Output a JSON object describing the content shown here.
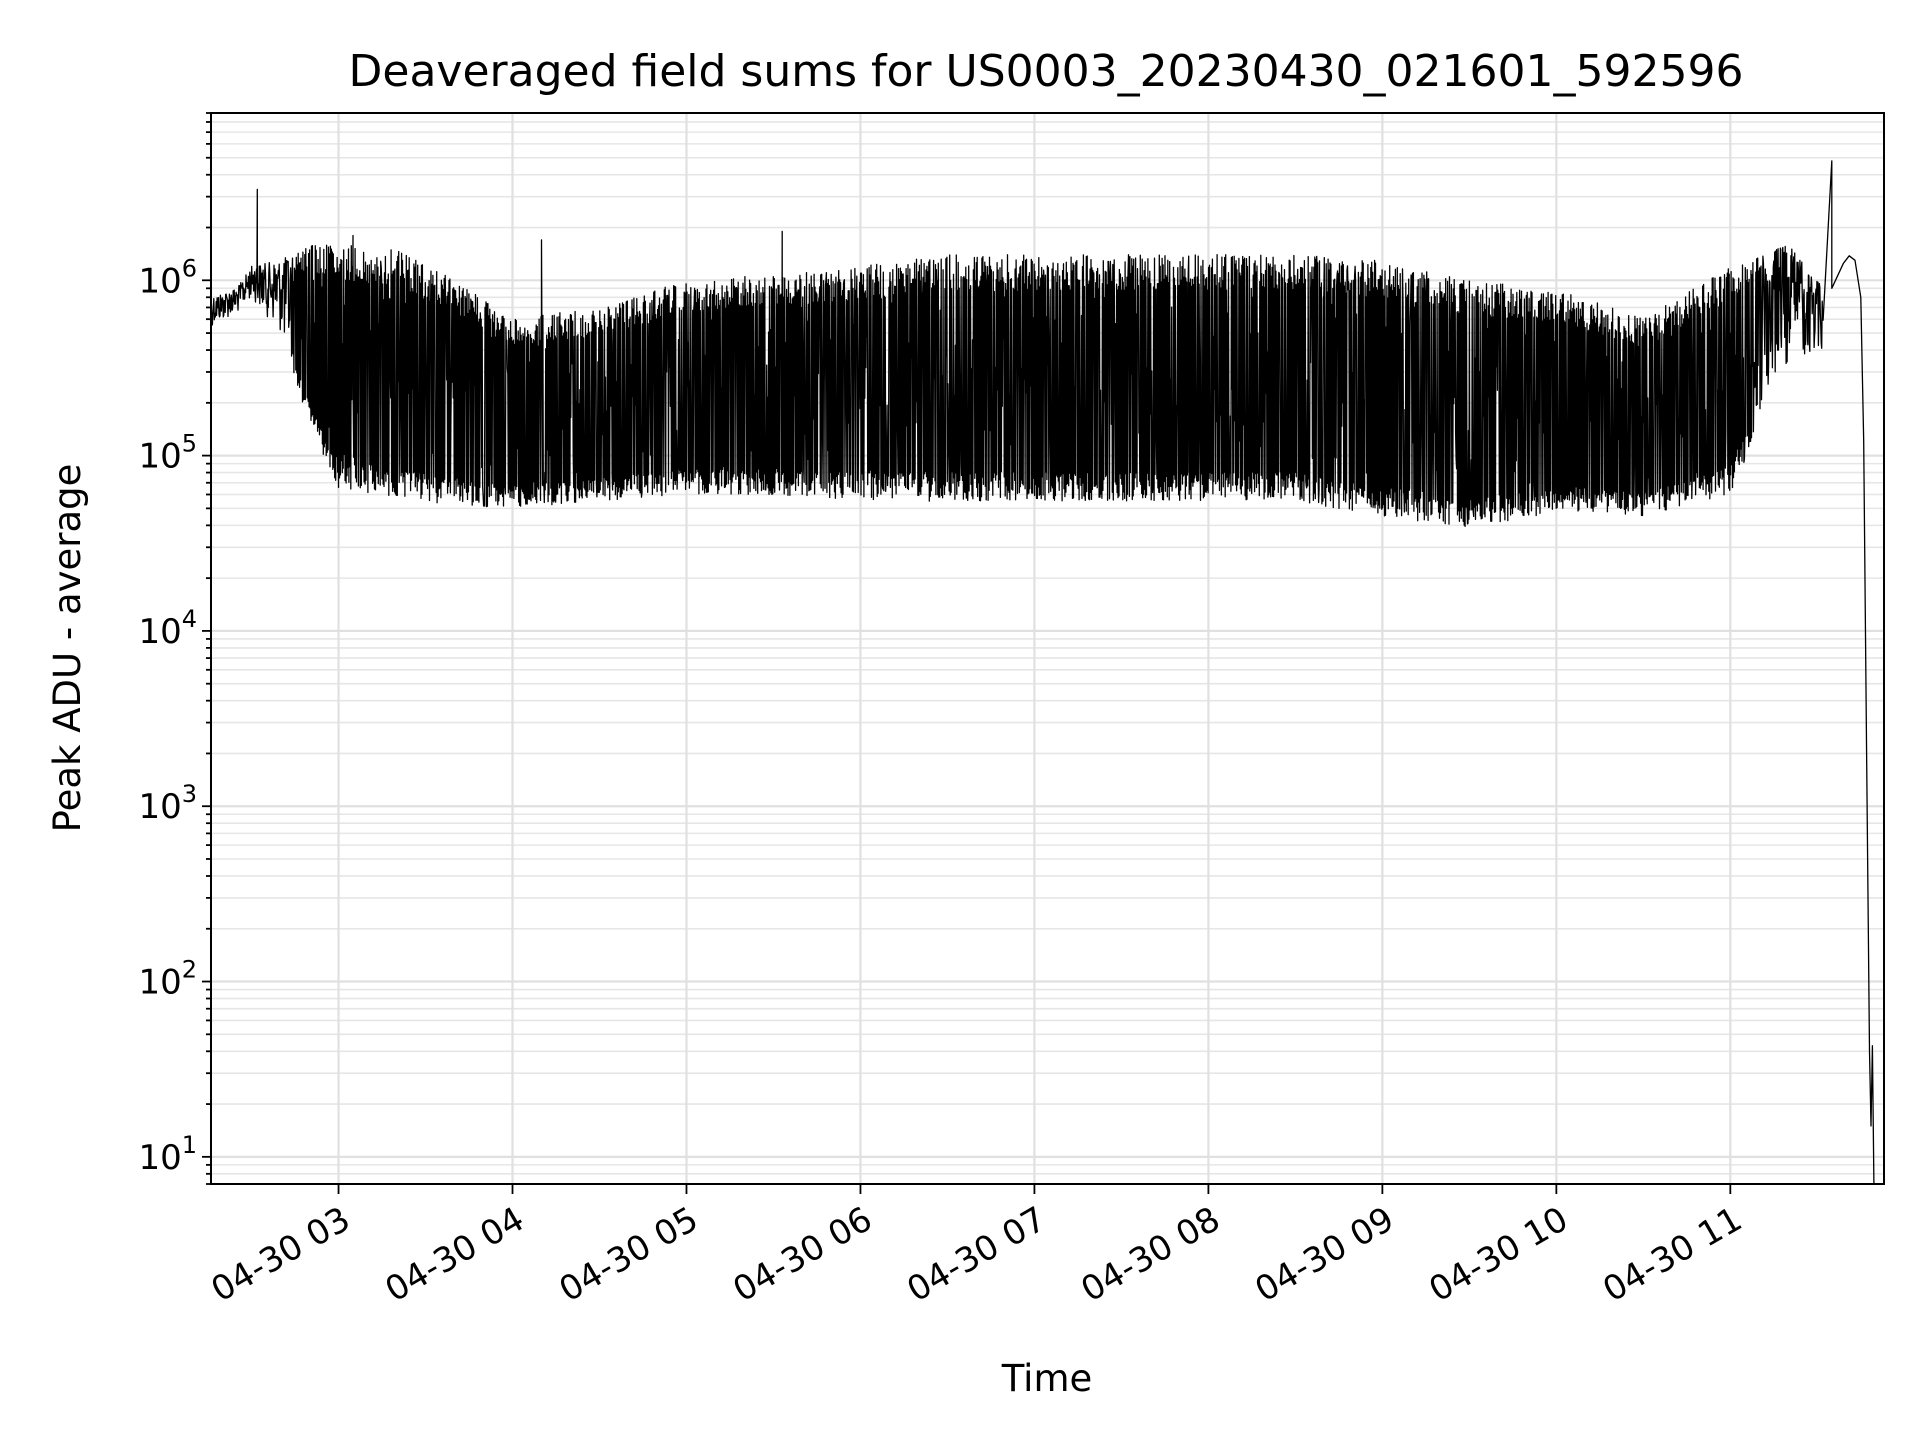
{
  "chart_data": {
    "type": "line",
    "title": "Deaveraged field sums for US0003_20230430_021601_592596",
    "xlabel": "Time",
    "ylabel": "Peak ADU - average",
    "yscale": "log",
    "ylim": [
      7,
      9000000
    ],
    "xlim": [
      "2023-04-30 02:16:01",
      "2023-04-30 11:53:00"
    ],
    "grid": true,
    "y_ticks": [
      {
        "value": 10,
        "base": "10",
        "exp": "1"
      },
      {
        "value": 100,
        "base": "10",
        "exp": "2"
      },
      {
        "value": 1000,
        "base": "10",
        "exp": "3"
      },
      {
        "value": 10000,
        "base": "10",
        "exp": "4"
      },
      {
        "value": 100000,
        "base": "10",
        "exp": "5"
      },
      {
        "value": 1000000,
        "base": "10",
        "exp": "6"
      }
    ],
    "x_ticks": [
      {
        "value": "2023-04-30 03:00",
        "label": "04-30 03"
      },
      {
        "value": "2023-04-30 04:00",
        "label": "04-30 04"
      },
      {
        "value": "2023-04-30 05:00",
        "label": "04-30 05"
      },
      {
        "value": "2023-04-30 06:00",
        "label": "04-30 06"
      },
      {
        "value": "2023-04-30 07:00",
        "label": "04-30 07"
      },
      {
        "value": "2023-04-30 08:00",
        "label": "04-30 08"
      },
      {
        "value": "2023-04-30 09:00",
        "label": "04-30 09"
      },
      {
        "value": "2023-04-30 10:00",
        "label": "04-30 10"
      },
      {
        "value": "2023-04-30 11:00",
        "label": "04-30 11"
      }
    ],
    "series": [
      {
        "color": "#000000",
        "envelope": [
          {
            "x": "2023-04-30 02:16",
            "upper": 800000,
            "lower": 550000
          },
          {
            "x": "2023-04-30 02:25",
            "upper": 900000,
            "lower": 650000
          },
          {
            "x": "2023-04-30 02:30",
            "upper": 1200000,
            "lower": 800000
          },
          {
            "x": "2023-04-30 02:40",
            "upper": 1300000,
            "lower": 500000
          },
          {
            "x": "2023-04-30 02:50",
            "upper": 1600000,
            "lower": 150000
          },
          {
            "x": "2023-04-30 03:00",
            "upper": 1600000,
            "lower": 65000
          },
          {
            "x": "2023-04-30 03:20",
            "upper": 1500000,
            "lower": 58000
          },
          {
            "x": "2023-04-30 03:40",
            "upper": 1000000,
            "lower": 52000
          },
          {
            "x": "2023-04-30 04:00",
            "upper": 600000,
            "lower": 50000
          },
          {
            "x": "2023-04-30 04:30",
            "upper": 700000,
            "lower": 55000
          },
          {
            "x": "2023-04-30 05:00",
            "upper": 1000000,
            "lower": 60000
          },
          {
            "x": "2023-04-30 05:30",
            "upper": 1100000,
            "lower": 60000
          },
          {
            "x": "2023-04-30 06:00",
            "upper": 1200000,
            "lower": 55000
          },
          {
            "x": "2023-04-30 06:30",
            "upper": 1400000,
            "lower": 55000
          },
          {
            "x": "2023-04-30 07:00",
            "upper": 1400000,
            "lower": 55000
          },
          {
            "x": "2023-04-30 07:30",
            "upper": 1400000,
            "lower": 55000
          },
          {
            "x": "2023-04-30 08:00",
            "upper": 1400000,
            "lower": 55000
          },
          {
            "x": "2023-04-30 08:30",
            "upper": 1400000,
            "lower": 55000
          },
          {
            "x": "2023-04-30 09:00",
            "upper": 1300000,
            "lower": 45000
          },
          {
            "x": "2023-04-30 09:30",
            "upper": 1000000,
            "lower": 38000
          },
          {
            "x": "2023-04-30 10:00",
            "upper": 900000,
            "lower": 48000
          },
          {
            "x": "2023-04-30 10:30",
            "upper": 600000,
            "lower": 45000
          },
          {
            "x": "2023-04-30 11:00",
            "upper": 1200000,
            "lower": 60000
          },
          {
            "x": "2023-04-30 11:20",
            "upper": 1600000,
            "lower": 350000
          },
          {
            "x": "2023-04-30 11:32",
            "upper": 900000,
            "lower": 400000
          }
        ],
        "spikes": [
          {
            "x": "2023-04-30 02:32",
            "y": 3300000
          },
          {
            "x": "2023-04-30 03:05",
            "y": 1800000
          },
          {
            "x": "2023-04-30 04:10",
            "y": 1700000
          },
          {
            "x": "2023-04-30 05:33",
            "y": 1900000
          },
          {
            "x": "2023-04-30 11:35",
            "y": 4800000
          }
        ],
        "tail": [
          {
            "x": "2023-04-30 11:35",
            "y": 900000
          },
          {
            "x": "2023-04-30 11:39",
            "y": 1250000
          },
          {
            "x": "2023-04-30 11:41",
            "y": 1380000
          },
          {
            "x": "2023-04-30 11:43",
            "y": 1300000
          },
          {
            "x": "2023-04-30 11:45",
            "y": 800000
          },
          {
            "x": "2023-04-30 11:46",
            "y": 120000
          },
          {
            "x": "2023-04-30 11:47",
            "y": 2000
          },
          {
            "x": "2023-04-30 11:48",
            "y": 40
          },
          {
            "x": "2023-04-30 11:48:30",
            "y": 15
          },
          {
            "x": "2023-04-30 11:49",
            "y": 43
          },
          {
            "x": "2023-04-30 11:49:30",
            "y": 7
          }
        ]
      }
    ]
  }
}
